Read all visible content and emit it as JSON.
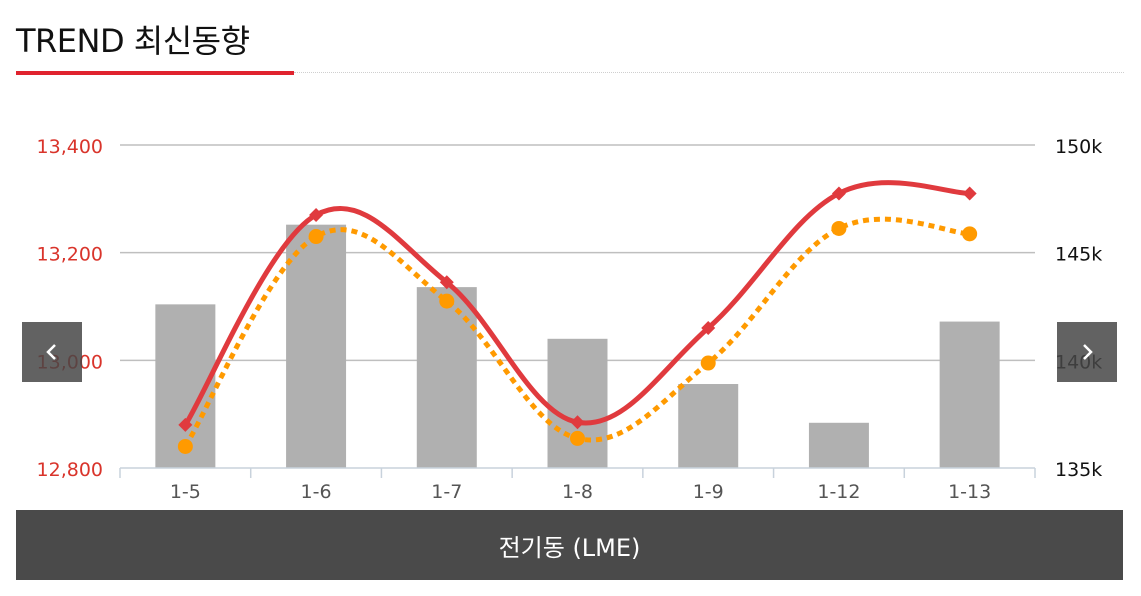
{
  "header": {
    "title": "TREND 최신동향"
  },
  "footer": {
    "label": "전기동 (LME)"
  },
  "nav": {
    "prev_icon": "chevron-left-icon",
    "next_icon": "chevron-right-icon"
  },
  "colors": {
    "accent": "#e0232e",
    "line_primary": "#e03a3e",
    "line_secondary": "#ff9a00",
    "bars": "#b0b0b0",
    "left_axis_text": "#d9342b"
  },
  "chart_data": {
    "type": "bar+line",
    "categories": [
      "1-5",
      "1-6",
      "1-7",
      "1-8",
      "1-9",
      "1-12",
      "1-13"
    ],
    "y_left": {
      "ticks": [
        "12,800",
        "13,000",
        "13,200",
        "13,400"
      ],
      "range": [
        12800,
        13400
      ]
    },
    "y_right": {
      "ticks": [
        "135k",
        "140k",
        "145k",
        "150k"
      ],
      "range": [
        135000,
        150000
      ]
    },
    "series": [
      {
        "kind": "bar",
        "axis": "right",
        "values": [
          142600,
          146300,
          143400,
          141000,
          138900,
          137100,
          141800
        ]
      },
      {
        "kind": "line",
        "axis": "left",
        "style": "solid",
        "marker": "diamond",
        "values": [
          12880,
          13270,
          13145,
          12885,
          13060,
          13310,
          13310
        ]
      },
      {
        "kind": "line",
        "axis": "left",
        "style": "dotted",
        "marker": "circle",
        "values": [
          12840,
          13230,
          13110,
          12855,
          12995,
          13245,
          13235
        ]
      }
    ],
    "grid": true,
    "legend": "none"
  }
}
